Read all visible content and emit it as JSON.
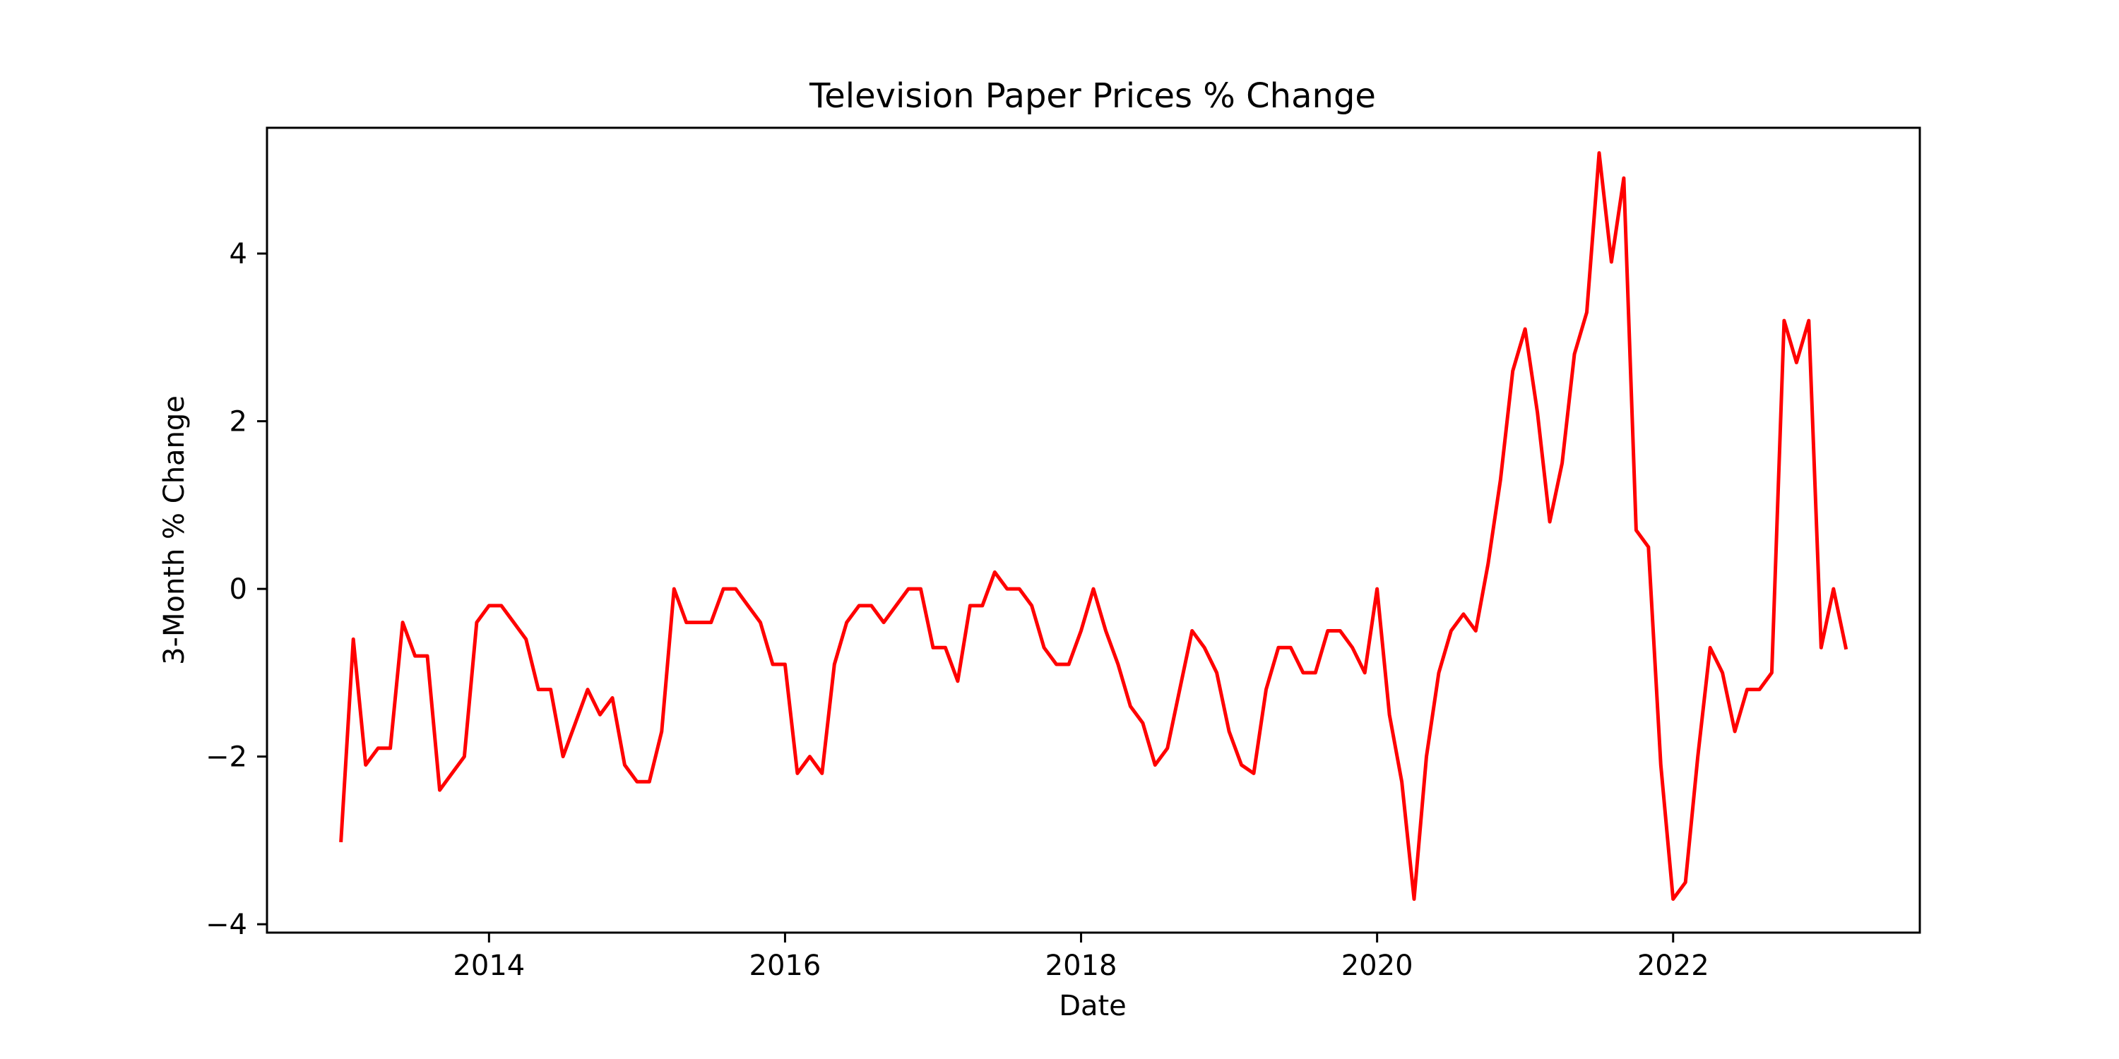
{
  "chart_data": {
    "type": "line",
    "title": "Television Paper Prices % Change",
    "xlabel": "Date",
    "ylabel": "3-Month % Change",
    "xlim": [
      "2012-07-01",
      "2023-09-01"
    ],
    "ylim": [
      -4.1,
      5.5
    ],
    "xticks": [
      "2014",
      "2016",
      "2018",
      "2020",
      "2022"
    ],
    "yticks": [
      -4,
      -2,
      0,
      2,
      4
    ],
    "ytick_labels": [
      "−4",
      "−2",
      "0",
      "2",
      "4"
    ],
    "grid": false,
    "legend": "none",
    "series": [
      {
        "color": "#ff0000",
        "x": [
          "2013-01",
          "2013-02",
          "2013-03",
          "2013-04",
          "2013-05",
          "2013-06",
          "2013-07",
          "2013-08",
          "2013-09",
          "2013-10",
          "2013-11",
          "2013-12",
          "2014-01",
          "2014-02",
          "2014-03",
          "2014-04",
          "2014-05",
          "2014-06",
          "2014-07",
          "2014-08",
          "2014-09",
          "2014-10",
          "2014-11",
          "2014-12",
          "2015-01",
          "2015-02",
          "2015-03",
          "2015-04",
          "2015-05",
          "2015-06",
          "2015-07",
          "2015-08",
          "2015-09",
          "2015-10",
          "2015-11",
          "2015-12",
          "2016-01",
          "2016-02",
          "2016-03",
          "2016-04",
          "2016-05",
          "2016-06",
          "2016-07",
          "2016-08",
          "2016-09",
          "2016-10",
          "2016-11",
          "2016-12",
          "2017-01",
          "2017-02",
          "2017-03",
          "2017-04",
          "2017-05",
          "2017-06",
          "2017-07",
          "2017-08",
          "2017-09",
          "2017-10",
          "2017-11",
          "2017-12",
          "2018-01",
          "2018-02",
          "2018-03",
          "2018-04",
          "2018-05",
          "2018-06",
          "2018-07",
          "2018-08",
          "2018-09",
          "2018-10",
          "2018-11",
          "2018-12",
          "2019-01",
          "2019-02",
          "2019-03",
          "2019-04",
          "2019-05",
          "2019-06",
          "2019-07",
          "2019-08",
          "2019-09",
          "2019-10",
          "2019-11",
          "2019-12",
          "2020-01",
          "2020-02",
          "2020-03",
          "2020-04",
          "2020-05",
          "2020-06",
          "2020-07",
          "2020-08",
          "2020-09",
          "2020-10",
          "2020-11",
          "2020-12",
          "2021-01",
          "2021-02",
          "2021-03",
          "2021-04",
          "2021-05",
          "2021-06",
          "2021-07",
          "2021-08",
          "2021-09",
          "2021-10",
          "2021-11",
          "2021-12",
          "2022-01",
          "2022-02",
          "2022-03",
          "2022-04",
          "2022-05",
          "2022-06",
          "2022-07",
          "2022-08",
          "2022-09",
          "2022-10",
          "2022-11",
          "2022-12",
          "2023-01",
          "2023-02",
          "2023-03"
        ],
        "y": [
          -3.0,
          -0.6,
          -2.1,
          -1.9,
          -1.9,
          -0.4,
          -0.8,
          -0.8,
          -2.4,
          -2.2,
          -2.0,
          -0.4,
          -0.2,
          -0.2,
          -0.4,
          -0.6,
          -1.2,
          -1.2,
          -2.0,
          -1.6,
          -1.2,
          -1.5,
          -1.3,
          -2.1,
          -2.3,
          -2.3,
          -1.7,
          0.0,
          -0.4,
          -0.4,
          -0.4,
          0.0,
          0.0,
          -0.2,
          -0.4,
          -0.9,
          -0.9,
          -2.2,
          -2.0,
          -2.2,
          -0.9,
          -0.4,
          -0.2,
          -0.2,
          -0.4,
          -0.2,
          0.0,
          0.0,
          -0.7,
          -0.7,
          -1.1,
          -0.2,
          -0.2,
          0.2,
          0.0,
          0.0,
          -0.2,
          -0.7,
          -0.9,
          -0.9,
          -0.5,
          0.0,
          -0.5,
          -0.9,
          -1.4,
          -1.6,
          -2.1,
          -1.9,
          -1.2,
          -0.5,
          -0.7,
          -1.0,
          -1.7,
          -2.1,
          -2.2,
          -1.2,
          -0.7,
          -0.7,
          -1.0,
          -1.0,
          -0.5,
          -0.5,
          -0.7,
          -1.0,
          0.0,
          -1.5,
          -2.3,
          -3.7,
          -2.0,
          -1.0,
          -0.5,
          -0.3,
          -0.5,
          0.3,
          1.3,
          2.6,
          3.1,
          2.1,
          0.8,
          1.5,
          2.8,
          3.3,
          5.2,
          3.9,
          4.9,
          0.7,
          0.5,
          -2.1,
          -3.7,
          -3.5,
          -2.0,
          -0.7,
          -1.0,
          -1.7,
          -1.2,
          -1.2,
          -1.0,
          3.2,
          2.7,
          3.2,
          -0.7,
          0.0,
          -0.7
        ]
      }
    ]
  }
}
